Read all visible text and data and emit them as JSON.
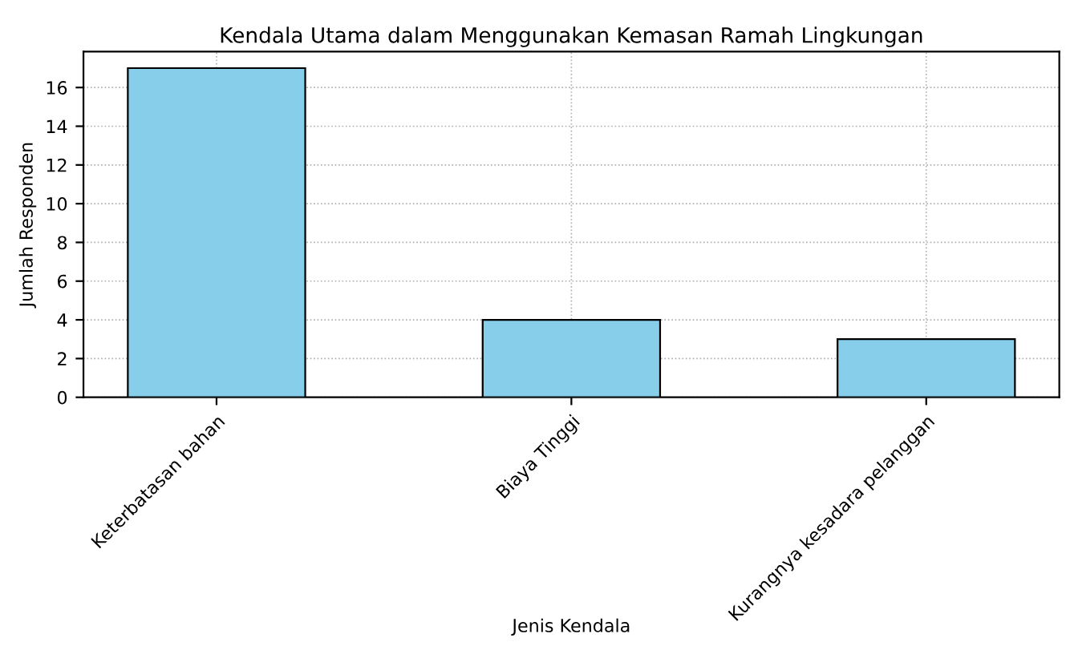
{
  "chart_data": {
    "type": "bar",
    "title": "Kendala Utama dalam Menggunakan Kemasan Ramah Lingkungan",
    "xlabel": "Jenis Kendala",
    "ylabel": "Jumlah Responden",
    "categories": [
      "Keterbatasan bahan",
      "Biaya Tinggi",
      "Kurangnya kesadara pelanggan"
    ],
    "values": [
      17,
      4,
      3
    ],
    "color": "#87ceeb",
    "ylim": [
      0,
      17.85
    ],
    "yticks": [
      0,
      2,
      4,
      6,
      8,
      10,
      12,
      14,
      16
    ],
    "grid": true
  }
}
